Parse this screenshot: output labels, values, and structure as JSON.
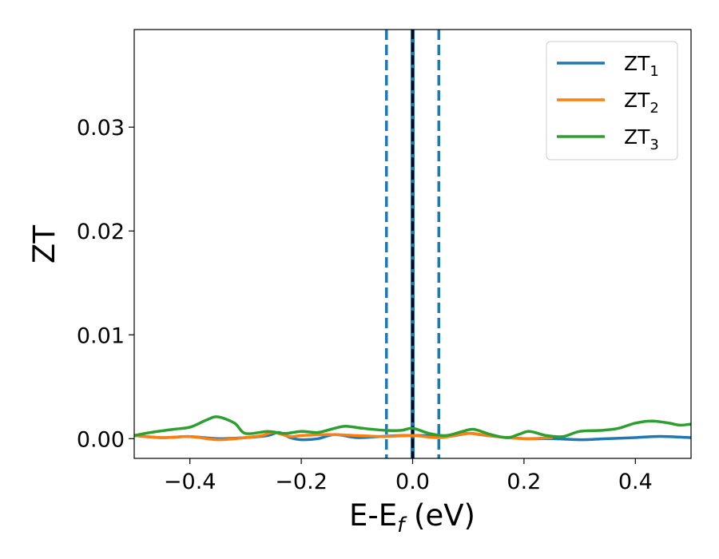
{
  "chart_data": {
    "type": "line",
    "xlabel": "E-E",
    "xlabel_sub": "f",
    "xlabel_unit": " (eV)",
    "ylabel": "ZT",
    "xlim": [
      -0.5,
      0.5
    ],
    "ylim": [
      -0.0019,
      0.0394
    ],
    "x_ticks": [
      -0.4,
      -0.2,
      0.0,
      0.2,
      0.4
    ],
    "x_tick_labels": [
      "−0.4",
      "−0.2",
      "0.0",
      "0.2",
      "0.4"
    ],
    "y_ticks": [
      0.0,
      0.01,
      0.02,
      0.03
    ],
    "y_tick_labels": [
      "0.00",
      "0.01",
      "0.02",
      "0.03"
    ],
    "grid": false,
    "legend_position": "top-right",
    "vertical_lines": [
      {
        "x": -0.047,
        "style": "dashed",
        "color": "#1f77b4"
      },
      {
        "x": 0.047,
        "style": "dashed",
        "color": "#1f77b4"
      },
      {
        "x": 0.0,
        "style": "dashed-over-solid",
        "color": "#000000"
      }
    ],
    "series": [
      {
        "name": "ZT",
        "sub": "1",
        "color": "#1f77b4",
        "x": [
          -0.5,
          -0.45,
          -0.4,
          -0.35,
          -0.3,
          -0.26,
          -0.24,
          -0.22,
          -0.2,
          -0.17,
          -0.14,
          -0.1,
          -0.06,
          -0.02,
          0.02,
          0.06,
          0.1,
          0.12,
          0.15,
          0.2,
          0.25,
          0.3,
          0.35,
          0.4,
          0.43,
          0.46,
          0.5
        ],
        "values": [
          0.0003,
          0.0001,
          0.0002,
          0.0,
          0.0001,
          0.0003,
          0.0006,
          0.0001,
          -0.0001,
          0.0,
          0.0004,
          0.0001,
          0.0002,
          0.0003,
          0.0003,
          0.0002,
          0.0005,
          0.0004,
          0.0002,
          0.0,
          0.0,
          -0.0001,
          0.0,
          0.0001,
          0.0002,
          0.0002,
          0.0001
        ]
      },
      {
        "name": "ZT",
        "sub": "2",
        "color": "#ff7f0e",
        "x": [
          -0.5,
          -0.45,
          -0.4,
          -0.35,
          -0.3,
          -0.27,
          -0.25,
          -0.22,
          -0.2,
          -0.15,
          -0.1,
          -0.05,
          0.0,
          0.05,
          0.1,
          0.15,
          0.2,
          0.25
        ],
        "values": [
          0.0003,
          0.0001,
          0.0002,
          -0.0001,
          0.0001,
          0.0003,
          0.0006,
          0.0002,
          0.0003,
          0.0004,
          0.0003,
          0.0002,
          0.0003,
          0.0001,
          0.0005,
          0.0002,
          0.0,
          0.0001
        ]
      },
      {
        "name": "ZT",
        "sub": "3",
        "color": "#2ca02c",
        "x": [
          -0.5,
          -0.47,
          -0.43,
          -0.4,
          -0.37,
          -0.35,
          -0.32,
          -0.3,
          -0.26,
          -0.23,
          -0.2,
          -0.17,
          -0.14,
          -0.12,
          -0.09,
          -0.05,
          -0.02,
          0.0,
          0.03,
          0.06,
          0.09,
          0.11,
          0.14,
          0.17,
          0.19,
          0.21,
          0.24,
          0.27,
          0.3,
          0.34,
          0.37,
          0.4,
          0.43,
          0.46,
          0.48,
          0.5
        ],
        "values": [
          0.0003,
          0.0006,
          0.0009,
          0.0011,
          0.0018,
          0.0021,
          0.0015,
          0.0005,
          0.0007,
          0.0005,
          0.0007,
          0.0006,
          0.001,
          0.0012,
          0.001,
          0.0008,
          0.0008,
          0.001,
          0.0005,
          0.0003,
          0.0007,
          0.0009,
          0.0004,
          0.0001,
          0.0004,
          0.0007,
          0.0003,
          0.0002,
          0.0007,
          0.0008,
          0.001,
          0.0015,
          0.0017,
          0.0015,
          0.0013,
          0.0014
        ]
      }
    ]
  }
}
